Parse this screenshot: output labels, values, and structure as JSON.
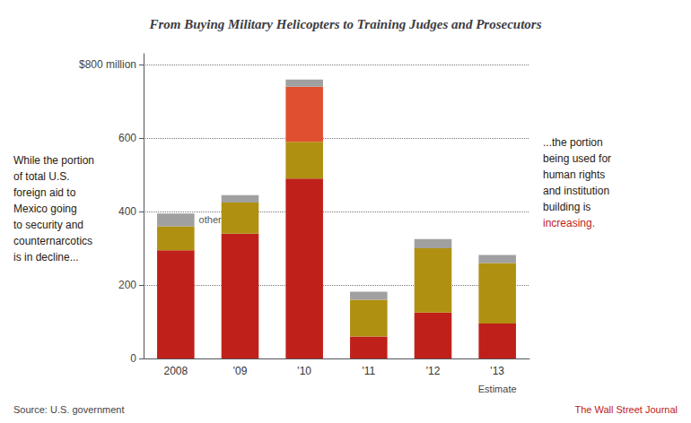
{
  "chart_data": {
    "type": "bar",
    "title": "From Buying Military Helicopters to Training Judges and Prosecutors",
    "categories": [
      "2008",
      "'09",
      "'10",
      "'11",
      "'12",
      "'13"
    ],
    "series": [
      {
        "color": "#c0201a",
        "values": [
          295,
          340,
          490,
          60,
          125,
          95
        ]
      },
      {
        "color": "#b09010",
        "values": [
          65,
          85,
          100,
          100,
          175,
          165
        ]
      },
      {
        "color": "#e05030",
        "values": [
          0,
          0,
          150,
          0,
          0,
          0
        ]
      },
      {
        "color": "#a0a0a0",
        "values": [
          35,
          20,
          20,
          22,
          25,
          22
        ]
      }
    ],
    "stacked": true,
    "ylim": [
      0,
      830
    ],
    "yticks": [
      0,
      200,
      400,
      600,
      {
        "value": 800,
        "label": "$800 million"
      }
    ],
    "grid": true,
    "annotations": [
      "other",
      "Estimate",
      "While the portion\nof total U.S.\nforeign aid to\nMexico going\nto security and\ncounternarcotics\nis in decline...",
      "...the portion\nbeing used for\nhuman rights\nand institution\nbuilding is",
      "increasing.",
      "Source: U.S. government",
      "The Wall Street Journal"
    ]
  }
}
